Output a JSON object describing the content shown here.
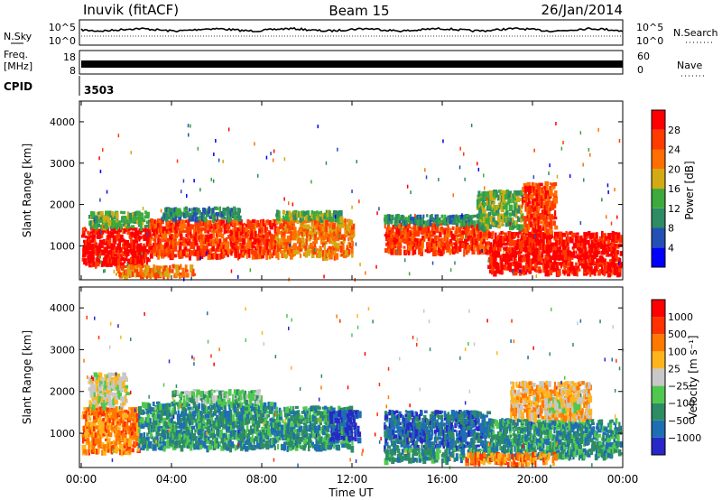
{
  "header": {
    "title": "Inuvik (fitACF)",
    "beam": "Beam 15",
    "date": "26/Jan/2014"
  },
  "strips": {
    "nsky_label": "N.Sky",
    "nsky_ticks": [
      "10^5",
      "10^0"
    ],
    "nsearch_label": "N.Search",
    "nsearch_ticks": [
      "10^5",
      "10^0"
    ],
    "freq_label": "Freq.",
    "freq_unit": "[MHz]",
    "freq_ticks": [
      "18",
      "8"
    ],
    "nave_label": "Nave",
    "nave_ticks": [
      "60",
      "0"
    ],
    "cpid_label": "CPID",
    "cpid_value": "3503"
  },
  "chart_data": [
    {
      "type": "heatmap",
      "quantity": "Power",
      "ylabel": "Slant Range [km]",
      "ylim": [
        180,
        4500
      ],
      "yticks": [
        "1000",
        "2000",
        "3000",
        "4000"
      ],
      "xlim": [
        "00:00",
        "24:00"
      ],
      "colorbar_label": "Power [dB]",
      "colorbar_ticks": [
        "4",
        "8",
        "12",
        "16",
        "20",
        "24",
        "28"
      ],
      "colors": [
        "#0000ff",
        "#2350b4",
        "#2d8c64",
        "#3caa3c",
        "#d2aa14",
        "#ff6e00",
        "#ff3c00",
        "#ff0000"
      ],
      "bands": [
        {
          "t0": 0.0,
          "t1": 3.0,
          "r0": 600,
          "r1": 1500,
          "level": 7
        },
        {
          "t0": 0.3,
          "t1": 3.0,
          "r0": 1500,
          "r1": 1900,
          "level": 3
        },
        {
          "t0": 3.0,
          "t1": 8.6,
          "r0": 800,
          "r1": 1700,
          "level": 6
        },
        {
          "t0": 3.5,
          "t1": 7.0,
          "r0": 1700,
          "r1": 2000,
          "level": 2
        },
        {
          "t0": 8.6,
          "t1": 12.0,
          "r0": 800,
          "r1": 1700,
          "level": 5
        },
        {
          "t0": 8.6,
          "t1": 11.5,
          "r0": 1700,
          "r1": 1900,
          "level": 3
        },
        {
          "t0": 13.4,
          "t1": 18.0,
          "r0": 900,
          "r1": 1600,
          "level": 6
        },
        {
          "t0": 13.4,
          "t1": 18.0,
          "r0": 1600,
          "r1": 1800,
          "level": 2
        },
        {
          "t0": 17.5,
          "t1": 19.5,
          "r0": 1500,
          "r1": 2400,
          "level": 3
        },
        {
          "t0": 18.0,
          "t1": 24.0,
          "r0": 400,
          "r1": 1400,
          "level": 7
        },
        {
          "t0": 19.5,
          "t1": 21.0,
          "r0": 1400,
          "r1": 2600,
          "level": 6
        },
        {
          "t0": 1.5,
          "t1": 5.0,
          "r0": 250,
          "r1": 600,
          "level": 5
        }
      ]
    },
    {
      "type": "heatmap",
      "quantity": "Velocity",
      "ylabel": "Slant Range [km]",
      "xlabel": "Time UT",
      "ylim": [
        180,
        4500
      ],
      "yticks": [
        "1000",
        "2000",
        "3000",
        "4000"
      ],
      "xticks": [
        "00:00",
        "04:00",
        "08:00",
        "12:00",
        "16:00",
        "20:00",
        "00:00"
      ],
      "colorbar_label": "Velocity [m s⁻¹]",
      "colorbar_ticks": [
        "1000",
        "500",
        "100",
        "25",
        "−25",
        "−100",
        "−500",
        "−1000"
      ],
      "colors": [
        "#2828c8",
        "#1e6eb4",
        "#2d8c64",
        "#50c850",
        "#c8c8c8",
        "#ffb41e",
        "#ff7800",
        "#ff3200",
        "#ff0000"
      ],
      "bands": [
        {
          "t0": 0.0,
          "t1": 2.5,
          "r0": 600,
          "r1": 1700,
          "level": 6
        },
        {
          "t0": 0.3,
          "t1": 2.0,
          "r0": 1700,
          "r1": 2500,
          "level": 4
        },
        {
          "t0": 2.5,
          "t1": 8.6,
          "r0": 700,
          "r1": 1800,
          "level": 2
        },
        {
          "t0": 4.0,
          "t1": 8.0,
          "r0": 1800,
          "r1": 2100,
          "level": 3
        },
        {
          "t0": 8.6,
          "t1": 12.0,
          "r0": 700,
          "r1": 1700,
          "level": 2
        },
        {
          "t0": 11.0,
          "t1": 12.3,
          "r0": 900,
          "r1": 1600,
          "level": 0
        },
        {
          "t0": 13.4,
          "t1": 18.0,
          "r0": 700,
          "r1": 1600,
          "level": 1
        },
        {
          "t0": 13.4,
          "t1": 18.0,
          "r0": 400,
          "r1": 700,
          "level": 2
        },
        {
          "t0": 18.0,
          "t1": 24.0,
          "r0": 500,
          "r1": 1400,
          "level": 2
        },
        {
          "t0": 19.0,
          "t1": 22.5,
          "r0": 1400,
          "r1": 2300,
          "level": 5
        },
        {
          "t0": 20.5,
          "t1": 22.0,
          "r0": 1600,
          "r1": 1900,
          "level": 4
        },
        {
          "t0": 17.0,
          "t1": 21.0,
          "r0": 300,
          "r1": 600,
          "level": 6
        }
      ]
    }
  ]
}
